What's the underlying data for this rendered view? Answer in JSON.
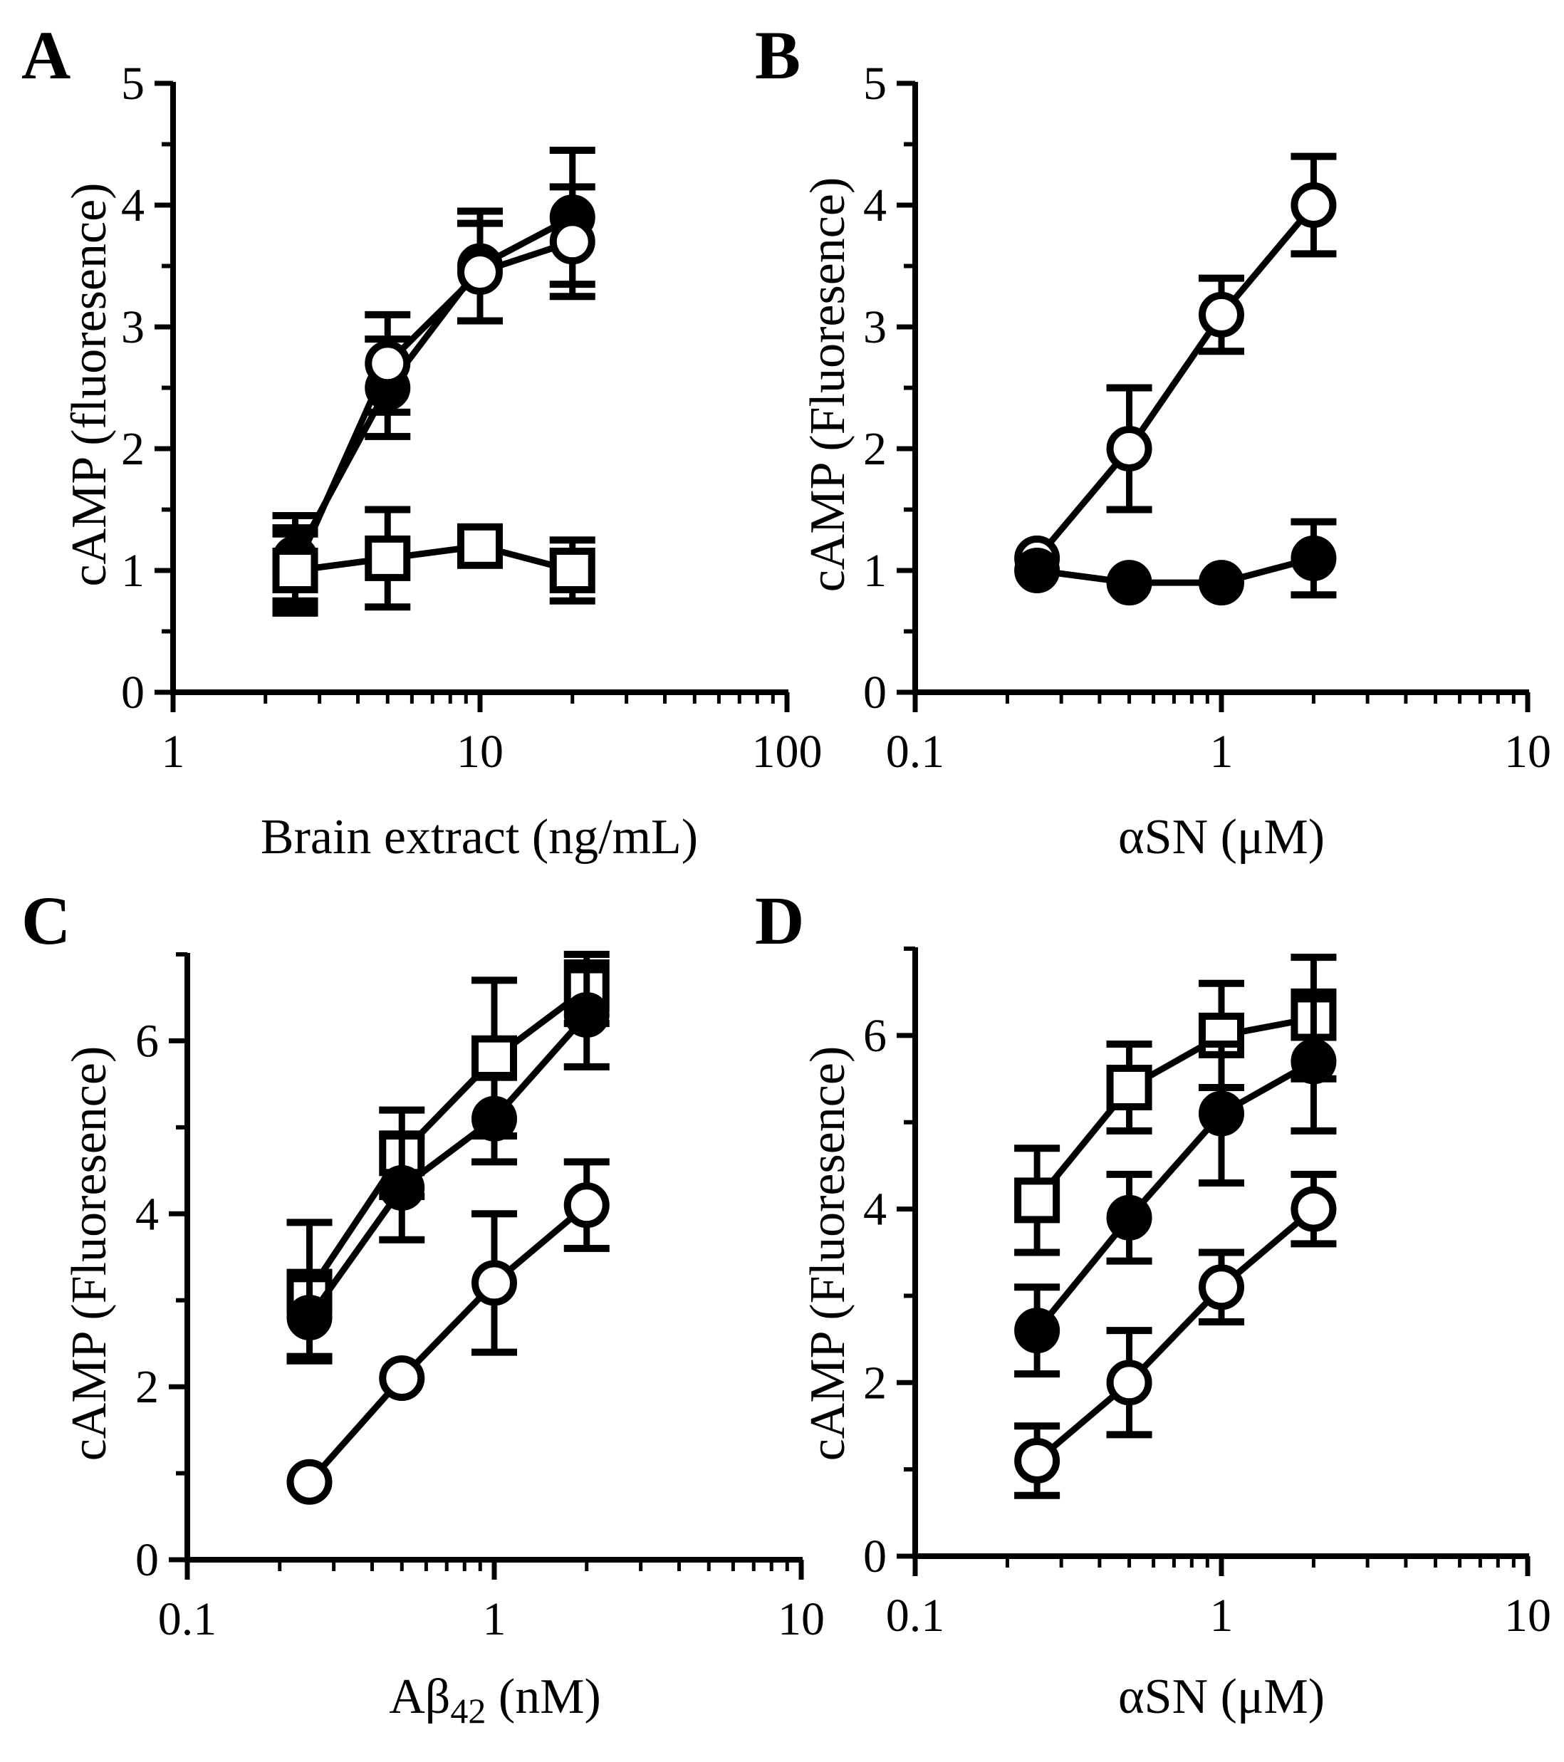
{
  "figure": {
    "line_color": "#000000",
    "background": "#ffffff"
  },
  "chart_data": [
    {
      "panel": "A",
      "type": "line",
      "xscale": "log",
      "xlabel": "Brain extract (ng/mL)",
      "ylabel": "cAMP (fluoresence)",
      "xlim": [
        1,
        100
      ],
      "ylim": [
        0,
        5
      ],
      "xticks": [
        1,
        10,
        100
      ],
      "xtick_labels": [
        "1",
        "10",
        "100"
      ],
      "yticks": [
        0,
        1,
        2,
        3,
        4,
        5
      ],
      "ytick_labels": [
        "0",
        "1",
        "2",
        "3",
        "4",
        "5"
      ],
      "series": [
        {
          "name": "filled-circle",
          "marker": "circle",
          "fill": "filled",
          "x": [
            2.5,
            5,
            10,
            20
          ],
          "y": [
            1.1,
            2.5,
            3.5,
            3.9
          ],
          "err": [
            0.35,
            0.4,
            0.45,
            0.55
          ]
        },
        {
          "name": "open-circle",
          "marker": "circle",
          "fill": "open",
          "x": [
            2.5,
            5,
            10,
            20
          ],
          "y": [
            1.0,
            2.7,
            3.45,
            3.7
          ],
          "err": [
            0.3,
            0.4,
            0.4,
            0.45
          ]
        },
        {
          "name": "open-square",
          "marker": "square",
          "fill": "open",
          "x": [
            2.5,
            5,
            10,
            20
          ],
          "y": [
            1.0,
            1.1,
            1.2,
            1.0
          ],
          "err": [
            0.35,
            0.4,
            0.0,
            0.25
          ]
        }
      ]
    },
    {
      "panel": "B",
      "type": "line",
      "xscale": "log",
      "xlabel": "αSN (μM)",
      "ylabel": "cAMP (Fluoresence)",
      "xlim": [
        0.1,
        10
      ],
      "ylim": [
        0,
        5
      ],
      "xticks": [
        0.1,
        1,
        10
      ],
      "xtick_labels": [
        "0.1",
        "1",
        "10"
      ],
      "yticks": [
        0,
        1,
        2,
        3,
        4,
        5
      ],
      "ytick_labels": [
        "0",
        "1",
        "2",
        "3",
        "4",
        "5"
      ],
      "series": [
        {
          "name": "open-circle",
          "marker": "circle",
          "fill": "open",
          "x": [
            0.25,
            0.5,
            1,
            2
          ],
          "y": [
            1.1,
            2.0,
            3.1,
            4.0
          ],
          "err": [
            0.0,
            0.5,
            0.3,
            0.4
          ]
        },
        {
          "name": "filled-circle",
          "marker": "circle",
          "fill": "filled",
          "x": [
            0.25,
            0.5,
            1,
            2
          ],
          "y": [
            1.0,
            0.9,
            0.9,
            1.1
          ],
          "err": [
            0.0,
            0.0,
            0.0,
            0.3
          ]
        }
      ]
    },
    {
      "panel": "C",
      "type": "line",
      "xscale": "log",
      "xlabel": "Aβ42 (nM)",
      "ylabel": "cAMP (Fluoresence)",
      "xlim": [
        0.1,
        10
      ],
      "ylim": [
        0,
        7
      ],
      "xticks": [
        0.1,
        1,
        10
      ],
      "xtick_labels": [
        "0.1",
        "1",
        "10"
      ],
      "yticks": [
        0,
        2,
        4,
        6
      ],
      "ytick_labels": [
        "0",
        "2",
        "4",
        "6"
      ],
      "series": [
        {
          "name": "open-square",
          "marker": "square",
          "fill": "open",
          "x": [
            0.25,
            0.5,
            1,
            2
          ],
          "y": [
            3.1,
            4.7,
            5.8,
            6.6
          ],
          "err": [
            0.8,
            0.5,
            0.9,
            0.4
          ]
        },
        {
          "name": "filled-circle",
          "marker": "circle",
          "fill": "filled",
          "x": [
            0.25,
            0.5,
            1,
            2
          ],
          "y": [
            2.8,
            4.3,
            5.1,
            6.3
          ],
          "err": [
            0.45,
            0.6,
            0.5,
            0.6
          ]
        },
        {
          "name": "open-circle",
          "marker": "circle",
          "fill": "open",
          "x": [
            0.25,
            0.5,
            1,
            2
          ],
          "y": [
            0.9,
            2.1,
            3.2,
            4.1
          ],
          "err": [
            0.0,
            0.0,
            0.8,
            0.5
          ]
        }
      ]
    },
    {
      "panel": "D",
      "type": "line",
      "xscale": "log",
      "xlabel": "αSN (μM)",
      "ylabel": "cAMP (Fluoresence)",
      "xlim": [
        0.1,
        10
      ],
      "ylim": [
        0,
        7
      ],
      "xticks": [
        0.1,
        1,
        10
      ],
      "xtick_labels": [
        "0.1",
        "1",
        "10"
      ],
      "yticks": [
        0,
        2,
        4,
        6
      ],
      "ytick_labels": [
        "0",
        "2",
        "4",
        "6"
      ],
      "series": [
        {
          "name": "open-square",
          "marker": "square",
          "fill": "open",
          "x": [
            0.25,
            0.5,
            1,
            2
          ],
          "y": [
            4.1,
            5.4,
            6.0,
            6.2
          ],
          "err": [
            0.6,
            0.5,
            0.6,
            0.7
          ]
        },
        {
          "name": "filled-circle",
          "marker": "circle",
          "fill": "filled",
          "x": [
            0.25,
            0.5,
            1,
            2
          ],
          "y": [
            2.6,
            3.9,
            5.1,
            5.7
          ],
          "err": [
            0.5,
            0.5,
            0.8,
            0.8
          ]
        },
        {
          "name": "open-circle",
          "marker": "circle",
          "fill": "open",
          "x": [
            0.25,
            0.5,
            1,
            2
          ],
          "y": [
            1.1,
            2.0,
            3.1,
            4.0
          ],
          "err": [
            0.4,
            0.6,
            0.4,
            0.4
          ]
        }
      ]
    }
  ]
}
